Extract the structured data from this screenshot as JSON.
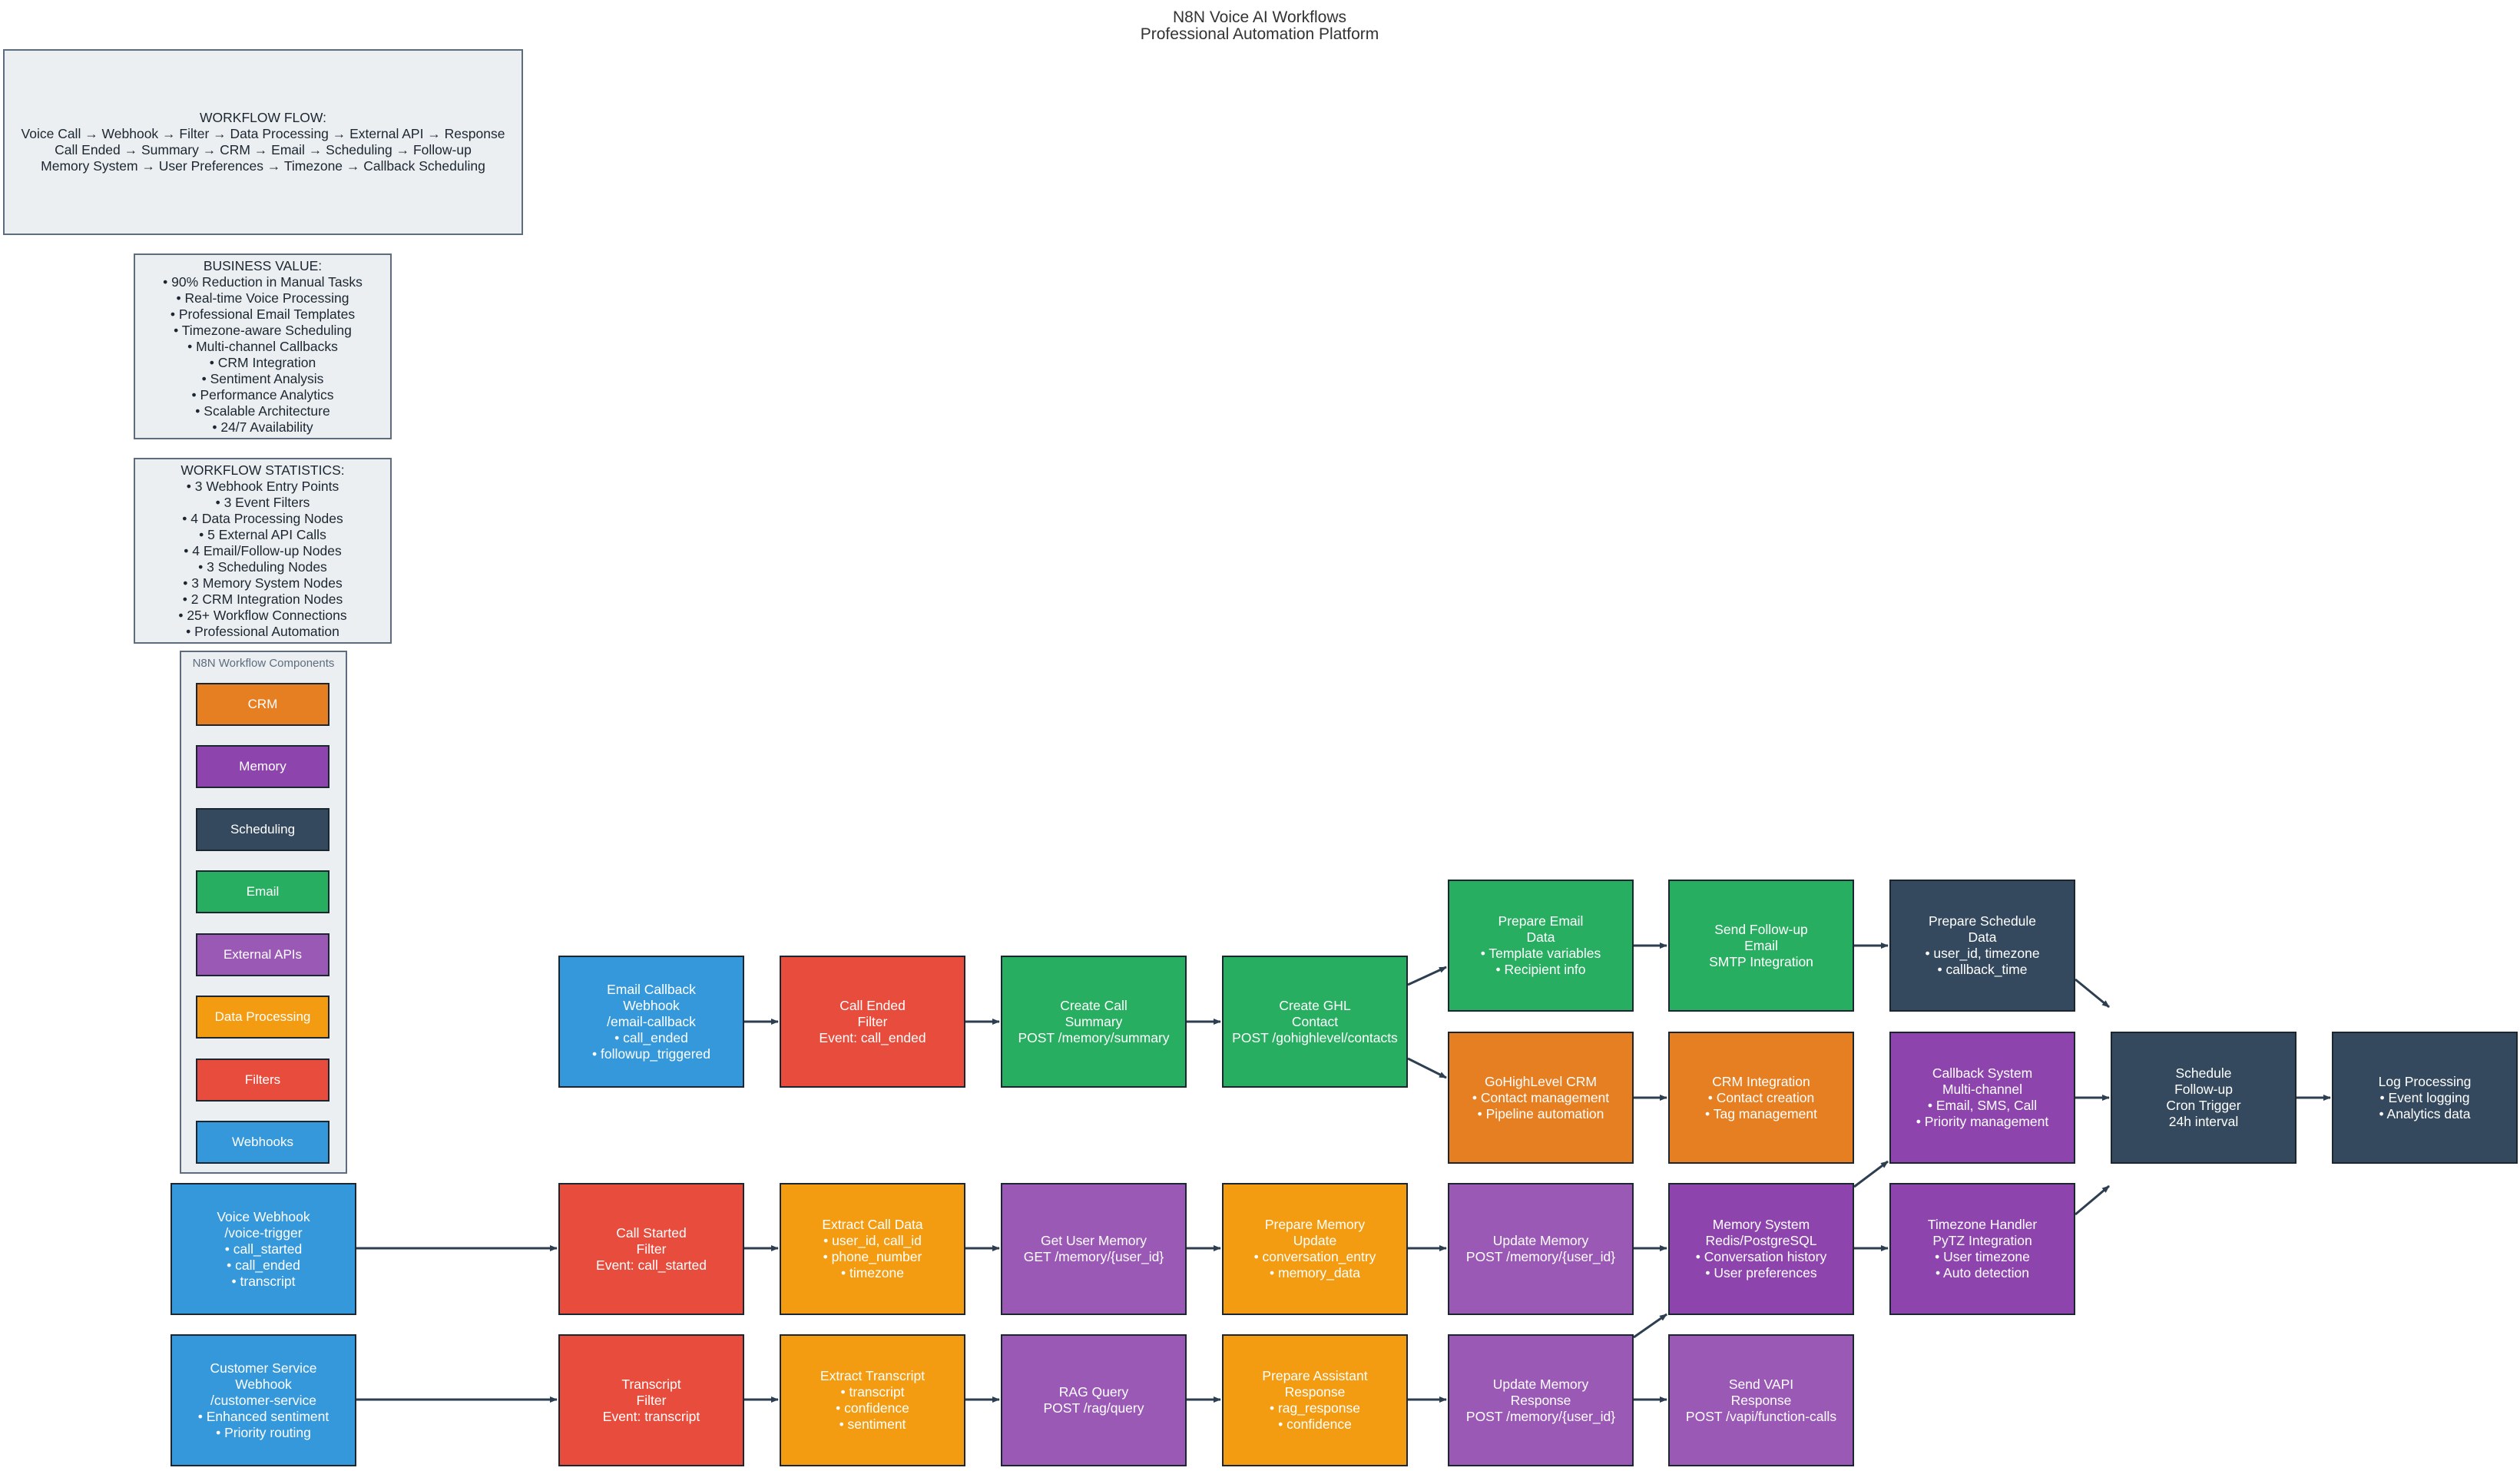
{
  "title": {
    "line1": "N8N Voice AI Workflows",
    "line2": "Professional Automation Platform"
  },
  "workflow_flow": {
    "lines": [
      "WORKFLOW FLOW:",
      "Voice Call → Webhook → Filter → Data Processing → External API → Response",
      "Call Ended → Summary → CRM → Email → Scheduling → Follow-up",
      "Memory System → User Preferences → Timezone → Callback Scheduling"
    ]
  },
  "business_value": {
    "lines": [
      "BUSINESS VALUE:",
      "• 90% Reduction in Manual Tasks",
      "• Real-time Voice Processing",
      "• Professional Email Templates",
      "• Timezone-aware Scheduling",
      "• Multi-channel Callbacks",
      "• CRM Integration",
      "• Sentiment Analysis",
      "• Performance Analytics",
      "• Scalable Architecture",
      "• 24/7 Availability"
    ]
  },
  "workflow_statistics": {
    "lines": [
      "WORKFLOW STATISTICS:",
      "• 3 Webhook Entry Points",
      "• 3 Event Filters",
      "• 4 Data Processing Nodes",
      "• 5 External API Calls",
      "• 4 Email/Follow-up Nodes",
      "• 3 Scheduling Nodes",
      "• 3 Memory System Nodes",
      "• 2 CRM Integration Nodes",
      "• 25+ Workflow Connections",
      "• Professional Automation"
    ]
  },
  "legend": {
    "title": "N8N Workflow Components",
    "items": [
      {
        "label": "CRM",
        "color": "#e67e22"
      },
      {
        "label": "Memory",
        "color": "#8e44ad"
      },
      {
        "label": "Scheduling",
        "color": "#34495e"
      },
      {
        "label": "Email",
        "color": "#27ae60"
      },
      {
        "label": "External APIs",
        "color": "#9b59b6"
      },
      {
        "label": "Data Processing",
        "color": "#f39c12"
      },
      {
        "label": "Filters",
        "color": "#e74c3c"
      },
      {
        "label": "Webhooks",
        "color": "#3498db"
      }
    ]
  },
  "nodes": {
    "email_callback_webhook": [
      "Email Callback",
      "Webhook",
      "/email-callback",
      "• call_ended",
      "• followup_triggered"
    ],
    "call_ended_filter": [
      "Call Ended",
      "Filter",
      "Event: call_ended"
    ],
    "create_call_summary": [
      "Create Call",
      "Summary",
      "POST /memory/summary"
    ],
    "create_ghl_contact": [
      "Create GHL",
      "Contact",
      "POST /gohighlevel/contacts"
    ],
    "prepare_email_data": [
      "Prepare Email",
      "Data",
      "• Template variables",
      "• Recipient info"
    ],
    "send_followup_email": [
      "Send Follow-up",
      "Email",
      "SMTP Integration"
    ],
    "prepare_schedule_data": [
      "Prepare Schedule",
      "Data",
      "• user_id, timezone",
      "• callback_time"
    ],
    "gohighlevel_crm": [
      "GoHighLevel CRM",
      "• Contact management",
      "• Pipeline automation"
    ],
    "crm_integration": [
      "CRM Integration",
      "• Contact creation",
      "• Tag management"
    ],
    "callback_system": [
      "Callback System",
      "Multi-channel",
      "• Email, SMS, Call",
      "• Priority management"
    ],
    "schedule_followup": [
      "Schedule",
      "Follow-up",
      "Cron Trigger",
      "24h interval"
    ],
    "log_processing": [
      "Log Processing",
      "• Event logging",
      "• Analytics data"
    ],
    "voice_webhook": [
      "Voice Webhook",
      "/voice-trigger",
      "• call_started",
      "• call_ended",
      "• transcript"
    ],
    "call_started_filter": [
      "Call Started",
      "Filter",
      "Event: call_started"
    ],
    "extract_call_data": [
      "Extract Call Data",
      "• user_id, call_id",
      "• phone_number",
      "• timezone"
    ],
    "get_user_memory": [
      "Get User Memory",
      "GET /memory/{user_id}"
    ],
    "prepare_memory_update": [
      "Prepare Memory",
      "Update",
      "• conversation_entry",
      "• memory_data"
    ],
    "update_memory": [
      "Update Memory",
      "POST /memory/{user_id}"
    ],
    "memory_system": [
      "Memory System",
      "Redis/PostgreSQL",
      "• Conversation history",
      "• User preferences"
    ],
    "timezone_handler": [
      "Timezone Handler",
      "PyTZ Integration",
      "• User timezone",
      "• Auto detection"
    ],
    "customer_service_webhook": [
      "Customer Service",
      "Webhook",
      "/customer-service",
      "• Enhanced sentiment",
      "• Priority routing"
    ],
    "transcript_filter": [
      "Transcript",
      "Filter",
      "Event: transcript"
    ],
    "extract_transcript": [
      "Extract Transcript",
      "• transcript",
      "• confidence",
      "• sentiment"
    ],
    "rag_query": [
      "RAG Query",
      "POST /rag/query"
    ],
    "prepare_assistant_response": [
      "Prepare Assistant",
      "Response",
      "• rag_response",
      "• confidence"
    ],
    "update_memory_response": [
      "Update Memory",
      "Response",
      "POST /memory/{user_id}"
    ],
    "send_vapi_response": [
      "Send VAPI",
      "Response",
      "POST /vapi/function-calls"
    ]
  }
}
